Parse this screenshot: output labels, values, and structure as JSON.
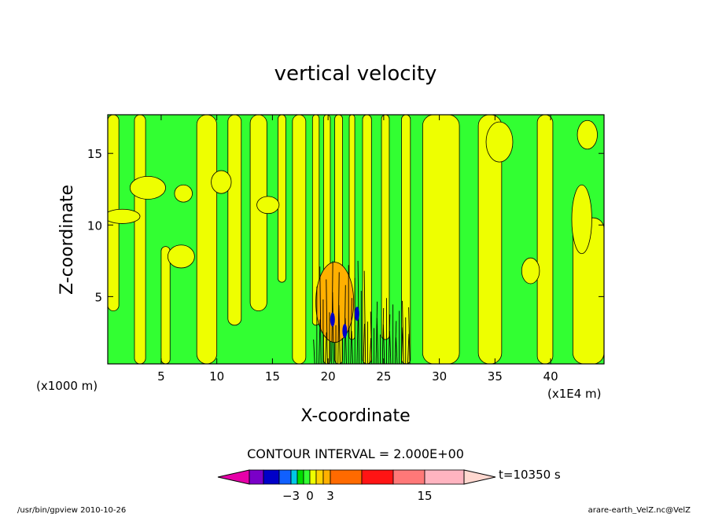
{
  "chart_data": {
    "type": "heatmap",
    "title": "vertical velocity",
    "xlabel": "X-coordinate",
    "ylabel": "Z-coordinate",
    "x_unit_left": "(x1000 m)",
    "x_unit_right": "(x1E4 m)",
    "xlim": [
      0.2,
      44.8
    ],
    "ylim": [
      0.3,
      17.7
    ],
    "x_ticks": [
      5,
      10,
      15,
      20,
      25,
      30,
      35,
      40
    ],
    "y_ticks": [
      5,
      10,
      15
    ],
    "contour_interval_text": "CONTOUR INTERVAL = 2.000E+00",
    "time_text": "t=10350 s",
    "colorbar": {
      "labels": [
        {
          "text": "−3",
          "level": -3
        },
        {
          "text": "0",
          "level": 0
        },
        {
          "text": "3",
          "level": 3
        },
        {
          "text": "15",
          "level": 15
        }
      ],
      "segments": [
        {
          "level": -9,
          "color": "#7a00c8"
        },
        {
          "level": -6,
          "color": "#0000c8"
        },
        {
          "level": -4,
          "color": "#1060ff"
        },
        {
          "level": -3,
          "color": "#00c8e6"
        },
        {
          "level": -2,
          "color": "#00dc00"
        },
        {
          "level": -1,
          "color": "#32ff32"
        },
        {
          "level": 0,
          "color": "#eeff00"
        },
        {
          "level": 1,
          "color": "#ffd200"
        },
        {
          "level": 2,
          "color": "#ffb000"
        },
        {
          "level": 3,
          "color": "#ff6a00"
        },
        {
          "level": 6,
          "color": "#ff1414"
        },
        {
          "level": 10,
          "color": "#ff7878"
        },
        {
          "level": 15,
          "color": "#ffb4c0"
        }
      ],
      "low_end_color": "#e600a8",
      "high_end_color": "#ffd8d0"
    },
    "field_colors": {
      "positive": "#eeff00",
      "negative": "#32ff32",
      "strong_positive": "#ffb000",
      "strong_negative": "#0000c8"
    }
  },
  "footer_left": "/usr/bin/gpview  2010-10-26",
  "footer_right": "arare-earth_VelZ.nc@VelZ"
}
